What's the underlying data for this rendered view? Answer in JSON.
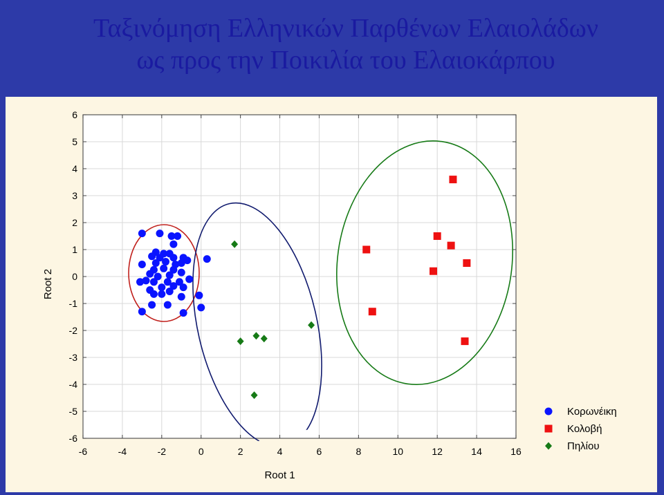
{
  "header": {
    "title_line1": "Ταξινόμηση Ελληνικών Παρθένων Ελαιολάδων",
    "title_line2": "ως προς την Ποικιλία του Ελαιοκάρπου"
  },
  "colors": {
    "background": "#2d3aa8",
    "plot_panel": "#fdf6e3",
    "title": "#1a1aa0",
    "grid": "#d8d8d8",
    "korwneiki": "#0a14ff",
    "kolovi": "#ee1111",
    "pilioy": "#167a16",
    "ellipse_red": "#c0201c",
    "ellipse_navy": "#101a6e",
    "ellipse_green": "#167a16"
  },
  "chart_data": {
    "type": "scatter",
    "title": "Ταξινόμηση Ελληνικών Παρθένων Ελαιολάδων ως προς την Ποικιλία του Ελαιοκάρπου",
    "xlabel": "Root 1",
    "ylabel": "Root 2",
    "xlim": [
      -6,
      16
    ],
    "ylim": [
      -6,
      6
    ],
    "xticks": [
      -6,
      -4,
      -2,
      0,
      2,
      4,
      6,
      8,
      10,
      12,
      14,
      16
    ],
    "yticks": [
      6,
      5,
      4,
      3,
      2,
      1,
      0,
      -1,
      -2,
      -3,
      -4,
      -5,
      -6
    ],
    "grid": true,
    "legend_position": "right",
    "series": [
      {
        "name": "Κορωνέικη",
        "marker": "circle",
        "color": "#0a14ff",
        "points": [
          [
            -3.0,
            1.6
          ],
          [
            -2.1,
            1.6
          ],
          [
            -1.5,
            1.5
          ],
          [
            -1.2,
            1.5
          ],
          [
            -1.4,
            1.2
          ],
          [
            -2.3,
            0.9
          ],
          [
            -2.5,
            0.75
          ],
          [
            -1.9,
            0.85
          ],
          [
            -1.6,
            0.85
          ],
          [
            -2.1,
            0.7
          ],
          [
            -1.4,
            0.7
          ],
          [
            -0.9,
            0.7
          ],
          [
            -0.7,
            0.6
          ],
          [
            -3.0,
            0.45
          ],
          [
            -2.3,
            0.5
          ],
          [
            -1.8,
            0.55
          ],
          [
            -1.3,
            0.45
          ],
          [
            -1.0,
            0.5
          ],
          [
            0.3,
            0.65
          ],
          [
            -2.4,
            0.25
          ],
          [
            -1.9,
            0.3
          ],
          [
            -1.4,
            0.25
          ],
          [
            -2.6,
            0.1
          ],
          [
            -2.2,
            0.0
          ],
          [
            -1.6,
            0.05
          ],
          [
            -1.0,
            0.15
          ],
          [
            -0.6,
            -0.1
          ],
          [
            -3.1,
            -0.2
          ],
          [
            -2.8,
            -0.15
          ],
          [
            -2.4,
            -0.2
          ],
          [
            -1.7,
            -0.2
          ],
          [
            -1.1,
            -0.2
          ],
          [
            -2.0,
            -0.4
          ],
          [
            -1.4,
            -0.35
          ],
          [
            -0.9,
            -0.4
          ],
          [
            -2.6,
            -0.5
          ],
          [
            -2.4,
            -0.65
          ],
          [
            -2.0,
            -0.65
          ],
          [
            -1.6,
            -0.55
          ],
          [
            -1.0,
            -0.75
          ],
          [
            -0.1,
            -0.7
          ],
          [
            -2.5,
            -1.05
          ],
          [
            -1.7,
            -1.05
          ],
          [
            -3.0,
            -1.3
          ],
          [
            -0.9,
            -1.35
          ],
          [
            0.0,
            -1.15
          ]
        ]
      },
      {
        "name": "Κολοβή",
        "marker": "square",
        "color": "#ee1111",
        "points": [
          [
            8.4,
            1.0
          ],
          [
            8.7,
            -1.3
          ],
          [
            11.8,
            0.2
          ],
          [
            12.0,
            1.5
          ],
          [
            12.7,
            1.15
          ],
          [
            12.8,
            3.6
          ],
          [
            13.5,
            0.5
          ],
          [
            13.4,
            -2.4
          ]
        ]
      },
      {
        "name": "Πηλίου",
        "marker": "diamond",
        "color": "#167a16",
        "points": [
          [
            1.7,
            1.2
          ],
          [
            2.0,
            -2.4
          ],
          [
            2.8,
            -2.2
          ],
          [
            3.2,
            -2.3
          ],
          [
            5.6,
            -1.8
          ],
          [
            2.7,
            -4.4
          ]
        ]
      }
    ],
    "annotations": [
      {
        "shape": "ellipse",
        "group": "Κορωνέικη",
        "color": "#c0201c"
      },
      {
        "shape": "ellipse",
        "group": "Πηλίου",
        "color": "#101a6e"
      },
      {
        "shape": "ellipse",
        "group": "Κολοβή",
        "color": "#167a16"
      }
    ]
  }
}
